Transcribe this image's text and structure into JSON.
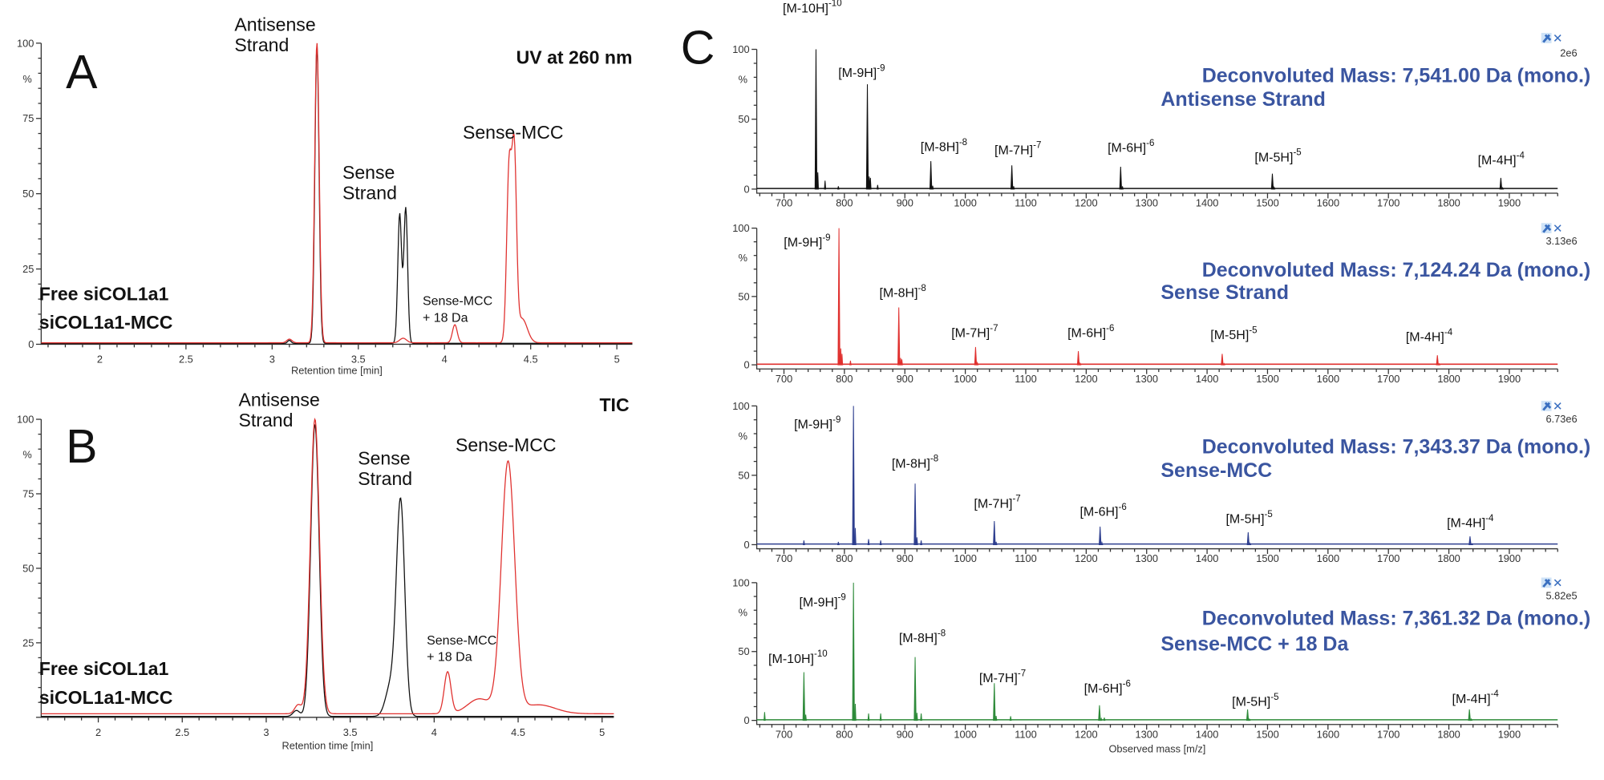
{
  "figure": {
    "panel_letters": [
      "A",
      "B",
      "C"
    ]
  },
  "chart_data": [
    {
      "id": "A",
      "type": "line",
      "title": "UV at 260 nm",
      "xlabel": "Retention time [min]",
      "ylabel": "%",
      "xlim": [
        1.66,
        5.09
      ],
      "ylim": [
        0,
        100
      ],
      "xticks": [
        "2",
        "2.5",
        "3",
        "3.5",
        "4",
        "4.5",
        "5"
      ],
      "yticks": [
        "0",
        "25",
        "50",
        "75",
        "100"
      ],
      "legend": {
        "placement": "bottom-left",
        "entries": [
          {
            "name": "Free siCOL1a1",
            "color": "#111111"
          },
          {
            "name": "siCOL1a1-MCC",
            "color": "#e0312f"
          }
        ]
      },
      "annotations": [
        {
          "lines": [
            "Antisense",
            "Strand"
          ],
          "x": 3.26
        },
        {
          "lines": [
            "Sense",
            "Strand"
          ],
          "x": 3.76
        },
        {
          "lines": [
            "Sense-MCC"
          ],
          "x": 4.4
        },
        {
          "lines": [
            "Sense-MCC",
            "+ 18 Da"
          ],
          "x": 4.06
        }
      ],
      "series": [
        {
          "name": "Free siCOL1a1",
          "color": "#111111",
          "baseline": 0.3,
          "peaks": [
            {
              "rt": 3.26,
              "intensity": 99,
              "sigma": 0.012
            },
            {
              "rt": 3.74,
              "intensity": 43,
              "sigma": 0.011
            },
            {
              "rt": 3.775,
              "intensity": 45,
              "sigma": 0.011
            },
            {
              "rt": 3.1,
              "intensity": 1,
              "sigma": 0.01
            }
          ]
        },
        {
          "name": "siCOL1a1-MCC",
          "color": "#e0312f",
          "baseline": 0.5,
          "peaks": [
            {
              "rt": 3.26,
              "intensity": 100,
              "sigma": 0.013
            },
            {
              "rt": 3.1,
              "intensity": 1.2,
              "sigma": 0.015
            },
            {
              "rt": 3.76,
              "intensity": 1.5,
              "sigma": 0.02
            },
            {
              "rt": 4.06,
              "intensity": 6,
              "sigma": 0.014
            },
            {
              "rt": 4.375,
              "intensity": 58,
              "sigma": 0.014
            },
            {
              "rt": 4.405,
              "intensity": 60,
              "sigma": 0.013
            },
            {
              "rt": 4.45,
              "intensity": 8,
              "sigma": 0.03
            }
          ]
        }
      ]
    },
    {
      "id": "B",
      "type": "line",
      "title": "TIC",
      "xlabel": "Retention time [min]",
      "ylabel": "%",
      "xlim": [
        1.66,
        5.07
      ],
      "ylim": [
        0,
        100
      ],
      "xticks": [
        "2",
        "2.5",
        "3",
        "3.5",
        "4",
        "4.5",
        "5"
      ],
      "yticks": [
        "25",
        "50",
        "75",
        "100"
      ],
      "legend": {
        "placement": "bottom-left",
        "entries": [
          {
            "name": "Free siCOL1a1",
            "color": "#111111"
          },
          {
            "name": "siCOL1a1-MCC",
            "color": "#e0312f"
          }
        ]
      },
      "annotations": [
        {
          "lines": [
            "Antisense",
            "Strand"
          ],
          "x": 3.29
        },
        {
          "lines": [
            "Sense",
            "Strand"
          ],
          "x": 3.8
        },
        {
          "lines": [
            "Sense-MCC"
          ],
          "x": 4.44
        },
        {
          "lines": [
            "Sense-MCC",
            "+ 18 Da"
          ],
          "x": 4.08
        }
      ],
      "series": [
        {
          "name": "Free siCOL1a1",
          "color": "#111111",
          "baseline": 0.3,
          "peaks": [
            {
              "rt": 3.29,
              "intensity": 98,
              "sigma": 0.025
            },
            {
              "rt": 3.74,
              "intensity": 10,
              "sigma": 0.03
            },
            {
              "rt": 3.8,
              "intensity": 72,
              "sigma": 0.025
            },
            {
              "rt": 3.18,
              "intensity": 2,
              "sigma": 0.02
            }
          ]
        },
        {
          "name": "siCOL1a1-MCC",
          "color": "#e0312f",
          "baseline": 1.2,
          "peaks": [
            {
              "rt": 3.29,
              "intensity": 99,
              "sigma": 0.027
            },
            {
              "rt": 3.19,
              "intensity": 3,
              "sigma": 0.02
            },
            {
              "rt": 4.08,
              "intensity": 14,
              "sigma": 0.02
            },
            {
              "rt": 4.27,
              "intensity": 5,
              "sigma": 0.07
            },
            {
              "rt": 4.44,
              "intensity": 84,
              "sigma": 0.04
            },
            {
              "rt": 4.62,
              "intensity": 3,
              "sigma": 0.1
            }
          ]
        }
      ]
    },
    {
      "id": "C1",
      "type": "bar",
      "title": "Deconvoluted Mass: 7,541.00 Da (mono.)",
      "subtitle": "Antisense Strand",
      "scale": "2e6",
      "color": "#111111",
      "xlim": [
        655,
        1980
      ],
      "ylim": [
        0,
        100
      ],
      "ylabel": "%",
      "xticks": [
        "700",
        "800",
        "900",
        "1000",
        "1100",
        "1200",
        "1300",
        "1400",
        "1500",
        "1600",
        "1700",
        "1800",
        "1900"
      ],
      "yticks": [
        "0",
        "50",
        "100"
      ],
      "peaks": [
        {
          "mz": 753,
          "intensity": 100,
          "label": "[M-10H]",
          "charge": "-10"
        },
        {
          "mz": 838,
          "intensity": 75,
          "label": "[M-9H]",
          "charge": "-9"
        },
        {
          "mz": 943,
          "intensity": 20,
          "label": "[M-8H]",
          "charge": "-8"
        },
        {
          "mz": 1077,
          "intensity": 17,
          "label": "[M-7H]",
          "charge": "-7"
        },
        {
          "mz": 1257,
          "intensity": 16,
          "label": "[M-6H]",
          "charge": "-6"
        },
        {
          "mz": 1508,
          "intensity": 11,
          "label": "[M-5H]",
          "charge": "-5"
        },
        {
          "mz": 1886,
          "intensity": 8,
          "label": "[M-4H]",
          "charge": "-4"
        }
      ],
      "minor_peaks": [
        {
          "mz": 768,
          "intensity": 6
        },
        {
          "mz": 790,
          "intensity": 2
        },
        {
          "mz": 843,
          "intensity": 8
        },
        {
          "mz": 855,
          "intensity": 3
        }
      ]
    },
    {
      "id": "C2",
      "type": "bar",
      "title": "Deconvoluted Mass: 7,124.24 Da (mono.)",
      "subtitle": "Sense Strand",
      "scale": "3.13e6",
      "color": "#e0312f",
      "xlim": [
        655,
        1980
      ],
      "ylim": [
        0,
        100
      ],
      "ylabel": "%",
      "xticks": [
        "700",
        "800",
        "900",
        "1000",
        "1100",
        "1200",
        "1300",
        "1400",
        "1500",
        "1600",
        "1700",
        "1800",
        "1900"
      ],
      "yticks": [
        "0",
        "50",
        "100"
      ],
      "peaks": [
        {
          "mz": 791,
          "intensity": 100,
          "label": "[M-9H]",
          "charge": "-9"
        },
        {
          "mz": 890,
          "intensity": 42,
          "label": "[M-8H]",
          "charge": "-8"
        },
        {
          "mz": 1017,
          "intensity": 13,
          "label": "[M-7H]",
          "charge": "-7"
        },
        {
          "mz": 1187,
          "intensity": 10,
          "label": "[M-6H]",
          "charge": "-6"
        },
        {
          "mz": 1425,
          "intensity": 8,
          "label": "[M-5H]",
          "charge": "-5"
        },
        {
          "mz": 1781,
          "intensity": 7,
          "label": "[M-4H]",
          "charge": "-4"
        }
      ],
      "minor_peaks": [
        {
          "mz": 796,
          "intensity": 8
        },
        {
          "mz": 810,
          "intensity": 3
        },
        {
          "mz": 895,
          "intensity": 4
        }
      ]
    },
    {
      "id": "C3",
      "type": "bar",
      "title": "Deconvoluted Mass: 7,343.37 Da (mono.)",
      "subtitle": "Sense-MCC",
      "scale": "6.73e6",
      "color": "#2e3f8f",
      "xlim": [
        655,
        1980
      ],
      "ylim": [
        0,
        100
      ],
      "ylabel": "%",
      "xticks": [
        "700",
        "800",
        "900",
        "1000",
        "1100",
        "1200",
        "1300",
        "1400",
        "1500",
        "1600",
        "1700",
        "1800",
        "1900"
      ],
      "yticks": [
        "0",
        "50",
        "100"
      ],
      "peaks": [
        {
          "mz": 815,
          "intensity": 100,
          "label": "[M-9H]",
          "charge": "-9"
        },
        {
          "mz": 917,
          "intensity": 44,
          "label": "[M-8H]",
          "charge": "-8"
        },
        {
          "mz": 1048,
          "intensity": 17,
          "label": "[M-7H]",
          "charge": "-7"
        },
        {
          "mz": 1223,
          "intensity": 13,
          "label": "[M-6H]",
          "charge": "-6"
        },
        {
          "mz": 1468,
          "intensity": 9,
          "label": "[M-5H]",
          "charge": "-5"
        },
        {
          "mz": 1835,
          "intensity": 6,
          "label": "[M-4H]",
          "charge": "-4"
        }
      ],
      "minor_peaks": [
        {
          "mz": 733,
          "intensity": 3
        },
        {
          "mz": 790,
          "intensity": 2
        },
        {
          "mz": 840,
          "intensity": 4
        },
        {
          "mz": 860,
          "intensity": 3
        },
        {
          "mz": 927,
          "intensity": 3
        }
      ]
    },
    {
      "id": "C4",
      "type": "bar",
      "title": "Deconvoluted Mass: 7,361.32 Da (mono.)",
      "subtitle": "Sense-MCC + 18 Da",
      "scale": "5.82e5",
      "color": "#2e8b3a",
      "xlim": [
        655,
        1980
      ],
      "ylim": [
        0,
        100
      ],
      "ylabel": "%",
      "xlabel": "Observed mass [m/z]",
      "xticks": [
        "700",
        "800",
        "900",
        "1000",
        "1100",
        "1200",
        "1300",
        "1400",
        "1500",
        "1600",
        "1700",
        "1800",
        "1900"
      ],
      "yticks": [
        "0",
        "50",
        "100"
      ],
      "peaks": [
        {
          "mz": 733,
          "intensity": 35,
          "label": "[M-10H]",
          "charge": "-10"
        },
        {
          "mz": 815,
          "intensity": 100,
          "label": "[M-9H]",
          "charge": "-9"
        },
        {
          "mz": 917,
          "intensity": 46,
          "label": "[M-8H]",
          "charge": "-8"
        },
        {
          "mz": 1048,
          "intensity": 27,
          "label": "[M-7H]",
          "charge": "-7"
        },
        {
          "mz": 1222,
          "intensity": 11,
          "label": "[M-6H]",
          "charge": "-6"
        },
        {
          "mz": 1467,
          "intensity": 8,
          "label": "[M-5H]",
          "charge": "-5"
        },
        {
          "mz": 1834,
          "intensity": 8,
          "label": "[M-4H]",
          "charge": "-4"
        }
      ],
      "minor_peaks": [
        {
          "mz": 668,
          "intensity": 6
        },
        {
          "mz": 840,
          "intensity": 5
        },
        {
          "mz": 860,
          "intensity": 5
        },
        {
          "mz": 927,
          "intensity": 5
        },
        {
          "mz": 1075,
          "intensity": 3
        },
        {
          "mz": 1230,
          "intensity": 2
        }
      ]
    }
  ]
}
